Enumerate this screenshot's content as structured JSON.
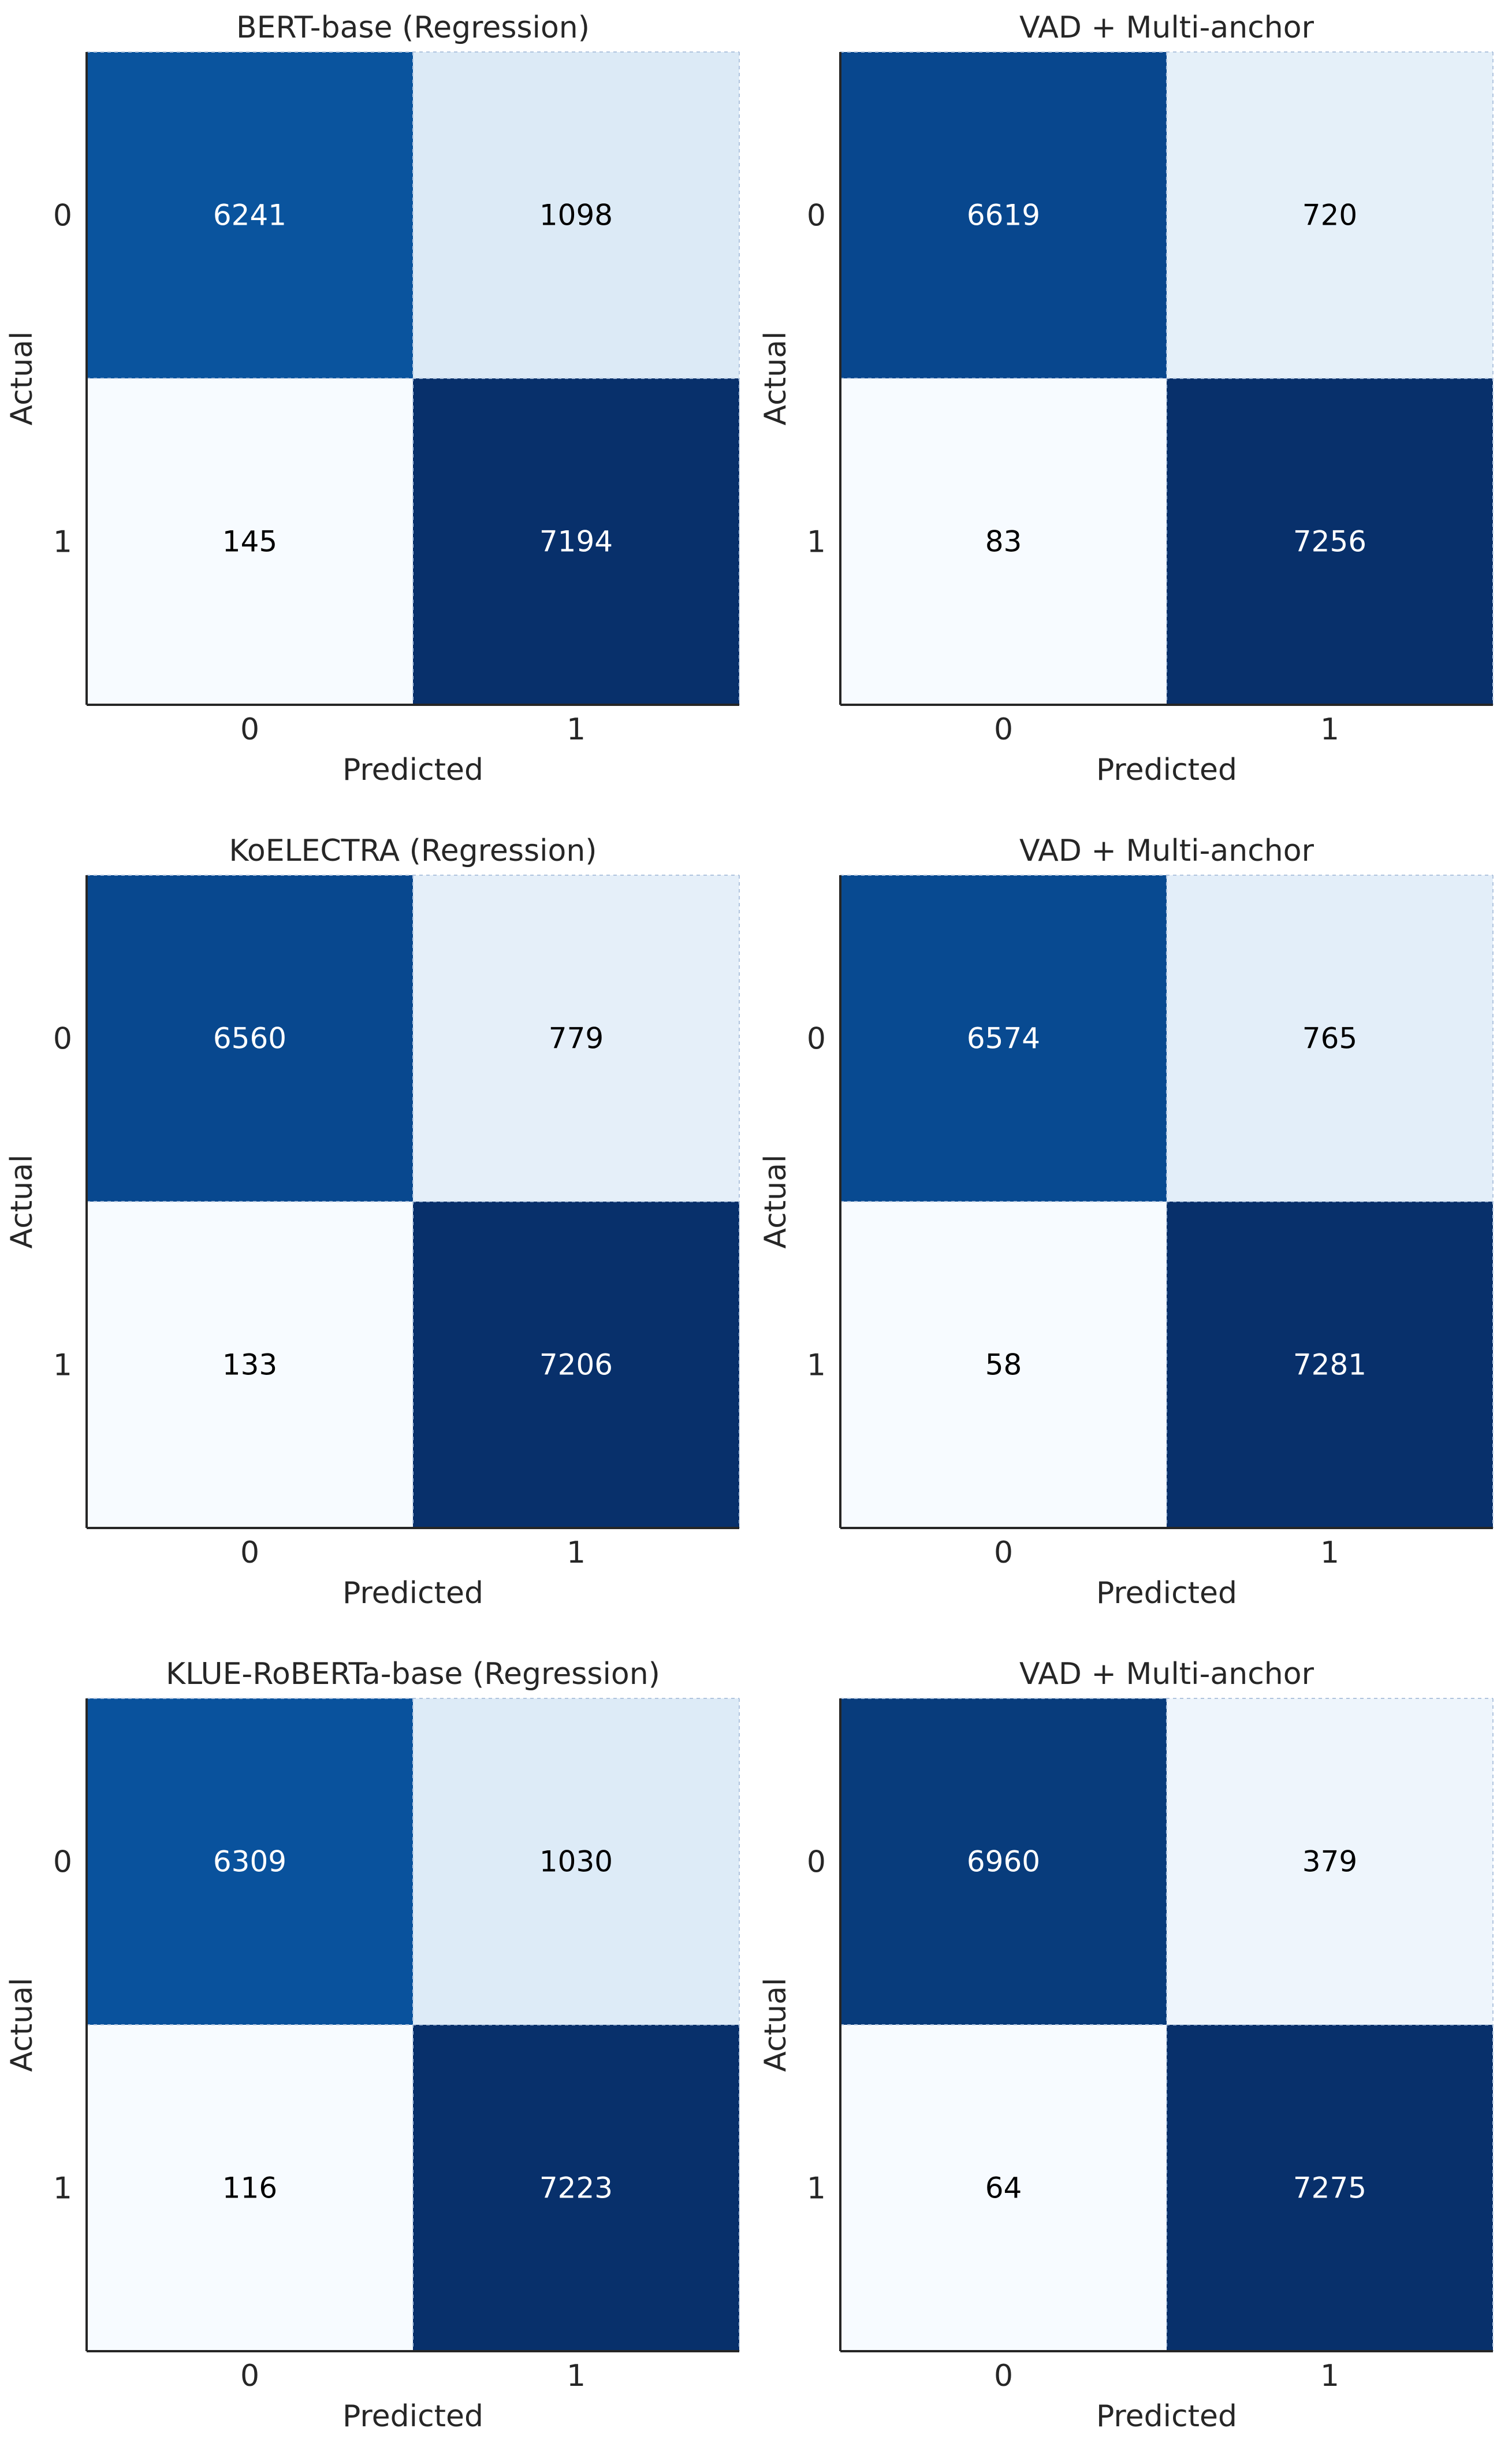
{
  "colormap": {
    "name": "Blues",
    "light": "#f7fbff",
    "dark": "#08306b",
    "text_on_dark": "#ffffff",
    "text_on_light": "#000000"
  },
  "chart_data": [
    {
      "type": "heatmap",
      "title": "BERT-base (Regression)",
      "xlabel": "Predicted",
      "ylabel": "Actual",
      "x_categories": [
        "0",
        "1"
      ],
      "y_categories": [
        "0",
        "1"
      ],
      "values": [
        [
          6241,
          1098
        ],
        [
          145,
          7194
        ]
      ]
    },
    {
      "type": "heatmap",
      "title": "VAD + Multi-anchor",
      "xlabel": "Predicted",
      "ylabel": "Actual",
      "x_categories": [
        "0",
        "1"
      ],
      "y_categories": [
        "0",
        "1"
      ],
      "values": [
        [
          6619,
          720
        ],
        [
          83,
          7256
        ]
      ]
    },
    {
      "type": "heatmap",
      "title": "KoELECTRA (Regression)",
      "xlabel": "Predicted",
      "ylabel": "Actual",
      "x_categories": [
        "0",
        "1"
      ],
      "y_categories": [
        "0",
        "1"
      ],
      "values": [
        [
          6560,
          779
        ],
        [
          133,
          7206
        ]
      ]
    },
    {
      "type": "heatmap",
      "title": "VAD + Multi-anchor",
      "xlabel": "Predicted",
      "ylabel": "Actual",
      "x_categories": [
        "0",
        "1"
      ],
      "y_categories": [
        "0",
        "1"
      ],
      "values": [
        [
          6574,
          765
        ],
        [
          58,
          7281
        ]
      ]
    },
    {
      "type": "heatmap",
      "title": "KLUE-RoBERTa-base (Regression)",
      "xlabel": "Predicted",
      "ylabel": "Actual",
      "x_categories": [
        "0",
        "1"
      ],
      "y_categories": [
        "0",
        "1"
      ],
      "values": [
        [
          6309,
          1030
        ],
        [
          116,
          7223
        ]
      ]
    },
    {
      "type": "heatmap",
      "title": "VAD + Multi-anchor",
      "xlabel": "Predicted",
      "ylabel": "Actual",
      "x_categories": [
        "0",
        "1"
      ],
      "y_categories": [
        "0",
        "1"
      ],
      "values": [
        [
          6960,
          379
        ],
        [
          64,
          7275
        ]
      ]
    }
  ]
}
